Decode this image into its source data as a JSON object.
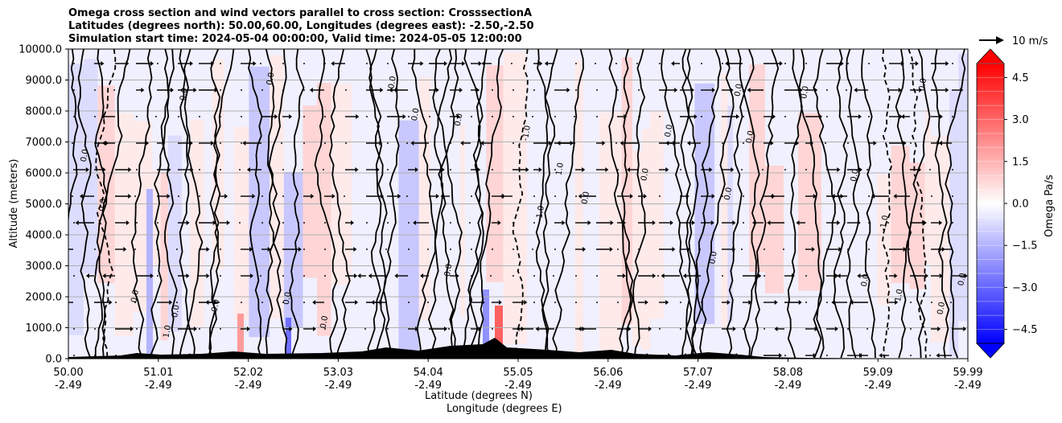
{
  "chart_data": {
    "type": "heatmap",
    "title_lines": [
      "Omega cross section and wind vectors parallel to cross section: CrosssectionA",
      "Latitudes (degrees north): 50.00,60.00, Longitudes (degrees east): -2.50,-2.50",
      "Simulation start time: 2024-05-04 00:00:00, Valid time: 2024-05-05 12:00:00"
    ],
    "xlabel_1": "Latitude (degrees N)",
    "xlabel_2": "Longitude (degrees E)",
    "ylabel": "Altitude (meters)",
    "x_ticks": [
      {
        "lat": "50.00",
        "lon": "-2.49"
      },
      {
        "lat": "51.01",
        "lon": "-2.49"
      },
      {
        "lat": "52.02",
        "lon": "-2.49"
      },
      {
        "lat": "53.03",
        "lon": "-2.49"
      },
      {
        "lat": "54.04",
        "lon": "-2.49"
      },
      {
        "lat": "55.05",
        "lon": "-2.49"
      },
      {
        "lat": "56.06",
        "lon": "-2.49"
      },
      {
        "lat": "57.07",
        "lon": "-2.49"
      },
      {
        "lat": "58.08",
        "lon": "-2.49"
      },
      {
        "lat": "59.09",
        "lon": "-2.49"
      },
      {
        "lat": "59.99",
        "lon": "-2.49"
      }
    ],
    "xlim": [
      50.0,
      59.99
    ],
    "y_ticks": [
      "10000.0",
      "9000.0",
      "8000.0",
      "7000.0",
      "6000.0",
      "5000.0",
      "4000.0",
      "3000.0",
      "2000.0",
      "1000.0",
      "0.0"
    ],
    "y_tick_values": [
      10000,
      9000,
      8000,
      7000,
      6000,
      5000,
      4000,
      3000,
      2000,
      1000,
      0
    ],
    "ylim": [
      0,
      10000
    ],
    "grid": true,
    "colorbar": {
      "label": "Omega Pa/s",
      "ticks": [
        "4.5",
        "3.0",
        "1.5",
        "0.0",
        "−1.5",
        "−3.0",
        "−4.5"
      ],
      "tick_values": [
        4.5,
        3.0,
        1.5,
        0.0,
        -1.5,
        -3.0,
        -4.5
      ],
      "range": [
        -5.0,
        5.0
      ],
      "colormap": "bwr",
      "extend": "both"
    },
    "quiver_key_label": "10 m/s",
    "contour_labels": [
      "0.0",
      "-1.0",
      "1.0"
    ]
  }
}
